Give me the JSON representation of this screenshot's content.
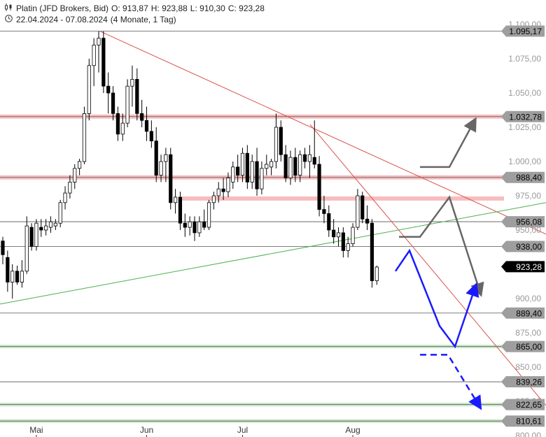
{
  "header": {
    "chart_icon": "candlestick-chart-icon",
    "instrument": "Platin (JFD Brokers, Bid)",
    "open": "O: 913,87",
    "high": "H: 923,88",
    "low": "L: 910,30",
    "close": "C: 923,28",
    "clock_icon": "clock-icon",
    "date_range": "22.04.2024 - 07.08.2024",
    "duration": "(4 Monate, 1 Tag)"
  },
  "chart_data": {
    "type": "candlestick",
    "instrument": "Platin (JFD Brokers, Bid)",
    "ylim": [
      794,
      1103
    ],
    "y_ticks": [
      1100,
      1075,
      1050,
      1025,
      1000,
      975,
      950,
      925,
      900,
      875,
      850,
      825,
      800
    ],
    "y_tick_labels": [
      "1.100,00",
      "1.075,00",
      "1.050,00",
      "1.025,00",
      "1.000,00",
      "975,00",
      "950,00",
      "925,00",
      "900,00",
      "875,00",
      "850,00",
      "825,00",
      "800,00"
    ],
    "x_labels": [
      "Mai",
      "Jun",
      "Jul",
      "Aug"
    ],
    "x_label_dates": [
      "2024-05-01",
      "2024-06-03",
      "2024-07-01",
      "2024-08-01"
    ],
    "colors": {
      "up": "#ffffff",
      "down": "#000000",
      "resistance": "#f4a7a7",
      "support": "#b8e0b8",
      "trend_red": "#d9534f",
      "trend_green": "#4caf50",
      "scenario_gray": "#666666",
      "scenario_blue": "#1a1aff"
    },
    "candles": [
      {
        "d": "2024-04-22",
        "o": 942,
        "h": 945,
        "l": 925,
        "c": 932
      },
      {
        "d": "2024-04-23",
        "o": 930,
        "h": 935,
        "l": 905,
        "c": 912
      },
      {
        "d": "2024-04-24",
        "o": 912,
        "h": 925,
        "l": 900,
        "c": 920
      },
      {
        "d": "2024-04-25",
        "o": 920,
        "h": 924,
        "l": 910,
        "c": 912
      },
      {
        "d": "2024-04-26",
        "o": 912,
        "h": 928,
        "l": 908,
        "c": 920
      },
      {
        "d": "2024-04-29",
        "o": 920,
        "h": 960,
        "l": 918,
        "c": 953
      },
      {
        "d": "2024-04-30",
        "o": 952,
        "h": 955,
        "l": 935,
        "c": 938
      },
      {
        "d": "2024-05-01",
        "o": 938,
        "h": 958,
        "l": 935,
        "c": 955
      },
      {
        "d": "2024-05-02",
        "o": 952,
        "h": 958,
        "l": 945,
        "c": 950
      },
      {
        "d": "2024-05-03",
        "o": 950,
        "h": 958,
        "l": 946,
        "c": 953
      },
      {
        "d": "2024-05-06",
        "o": 952,
        "h": 960,
        "l": 948,
        "c": 956
      },
      {
        "d": "2024-05-07",
        "o": 953,
        "h": 958,
        "l": 950,
        "c": 955
      },
      {
        "d": "2024-05-08",
        "o": 955,
        "h": 972,
        "l": 952,
        "c": 970
      },
      {
        "d": "2024-05-09",
        "o": 970,
        "h": 982,
        "l": 965,
        "c": 977
      },
      {
        "d": "2024-05-10",
        "o": 977,
        "h": 990,
        "l": 973,
        "c": 985
      },
      {
        "d": "2024-05-13",
        "o": 985,
        "h": 998,
        "l": 980,
        "c": 995
      },
      {
        "d": "2024-05-14",
        "o": 995,
        "h": 1002,
        "l": 990,
        "c": 1000
      },
      {
        "d": "2024-05-15",
        "o": 1000,
        "h": 1040,
        "l": 998,
        "c": 1035
      },
      {
        "d": "2024-05-16",
        "o": 1035,
        "h": 1075,
        "l": 1030,
        "c": 1070
      },
      {
        "d": "2024-05-17",
        "o": 1070,
        "h": 1090,
        "l": 1055,
        "c": 1085
      },
      {
        "d": "2024-05-20",
        "o": 1085,
        "h": 1095,
        "l": 1065,
        "c": 1090
      },
      {
        "d": "2024-05-21",
        "o": 1090,
        "h": 1095,
        "l": 1050,
        "c": 1055
      },
      {
        "d": "2024-05-22",
        "o": 1055,
        "h": 1065,
        "l": 1035,
        "c": 1050
      },
      {
        "d": "2024-05-23",
        "o": 1050,
        "h": 1055,
        "l": 1030,
        "c": 1035
      },
      {
        "d": "2024-05-24",
        "o": 1035,
        "h": 1040,
        "l": 1015,
        "c": 1020
      },
      {
        "d": "2024-05-27",
        "o": 1020,
        "h": 1035,
        "l": 1015,
        "c": 1028
      },
      {
        "d": "2024-05-28",
        "o": 1028,
        "h": 1060,
        "l": 1025,
        "c": 1055
      },
      {
        "d": "2024-05-29",
        "o": 1055,
        "h": 1070,
        "l": 1040,
        "c": 1060
      },
      {
        "d": "2024-05-30",
        "o": 1060,
        "h": 1068,
        "l": 1030,
        "c": 1035
      },
      {
        "d": "2024-05-31",
        "o": 1035,
        "h": 1045,
        "l": 1025,
        "c": 1030
      },
      {
        "d": "2024-06-03",
        "o": 1030,
        "h": 1040,
        "l": 1015,
        "c": 1022
      },
      {
        "d": "2024-06-04",
        "o": 1022,
        "h": 1030,
        "l": 1010,
        "c": 1015
      },
      {
        "d": "2024-06-05",
        "o": 1015,
        "h": 1025,
        "l": 985,
        "c": 990
      },
      {
        "d": "2024-06-06",
        "o": 990,
        "h": 1005,
        "l": 985,
        "c": 1000
      },
      {
        "d": "2024-06-07",
        "o": 1000,
        "h": 1010,
        "l": 985,
        "c": 1005
      },
      {
        "d": "2024-06-10",
        "o": 1005,
        "h": 1010,
        "l": 965,
        "c": 970
      },
      {
        "d": "2024-06-11",
        "o": 970,
        "h": 980,
        "l": 962,
        "c": 974
      },
      {
        "d": "2024-06-12",
        "o": 974,
        "h": 978,
        "l": 950,
        "c": 955
      },
      {
        "d": "2024-06-13",
        "o": 955,
        "h": 962,
        "l": 945,
        "c": 952
      },
      {
        "d": "2024-06-14",
        "o": 952,
        "h": 960,
        "l": 946,
        "c": 956
      },
      {
        "d": "2024-06-17",
        "o": 956,
        "h": 960,
        "l": 942,
        "c": 948
      },
      {
        "d": "2024-06-18",
        "o": 948,
        "h": 960,
        "l": 945,
        "c": 956
      },
      {
        "d": "2024-06-19",
        "o": 956,
        "h": 965,
        "l": 950,
        "c": 952
      },
      {
        "d": "2024-06-20",
        "o": 952,
        "h": 972,
        "l": 950,
        "c": 970
      },
      {
        "d": "2024-06-21",
        "o": 970,
        "h": 978,
        "l": 965,
        "c": 975
      },
      {
        "d": "2024-06-24",
        "o": 975,
        "h": 985,
        "l": 970,
        "c": 980
      },
      {
        "d": "2024-06-25",
        "o": 980,
        "h": 988,
        "l": 972,
        "c": 978
      },
      {
        "d": "2024-06-26",
        "o": 978,
        "h": 992,
        "l": 974,
        "c": 988
      },
      {
        "d": "2024-06-27",
        "o": 985,
        "h": 1000,
        "l": 980,
        "c": 996
      },
      {
        "d": "2024-06-28",
        "o": 996,
        "h": 1005,
        "l": 985,
        "c": 990
      },
      {
        "d": "2024-07-01",
        "o": 990,
        "h": 1010,
        "l": 985,
        "c": 1006
      },
      {
        "d": "2024-07-02",
        "o": 1006,
        "h": 1012,
        "l": 980,
        "c": 985
      },
      {
        "d": "2024-07-03",
        "o": 985,
        "h": 1005,
        "l": 980,
        "c": 1000
      },
      {
        "d": "2024-07-04",
        "o": 1000,
        "h": 1010,
        "l": 975,
        "c": 980
      },
      {
        "d": "2024-07-05",
        "o": 980,
        "h": 1000,
        "l": 976,
        "c": 995
      },
      {
        "d": "2024-07-08",
        "o": 995,
        "h": 1005,
        "l": 990,
        "c": 998
      },
      {
        "d": "2024-07-09",
        "o": 996,
        "h": 1002,
        "l": 990,
        "c": 1000
      },
      {
        "d": "2024-07-10",
        "o": 1000,
        "h": 1035,
        "l": 995,
        "c": 1025
      },
      {
        "d": "2024-07-11",
        "o": 1025,
        "h": 1030,
        "l": 1000,
        "c": 1005
      },
      {
        "d": "2024-07-12",
        "o": 1005,
        "h": 1012,
        "l": 985,
        "c": 988
      },
      {
        "d": "2024-07-15",
        "o": 988,
        "h": 1008,
        "l": 983,
        "c": 1003
      },
      {
        "d": "2024-07-16",
        "o": 1003,
        "h": 1010,
        "l": 985,
        "c": 990
      },
      {
        "d": "2024-07-17",
        "o": 990,
        "h": 1008,
        "l": 985,
        "c": 1005
      },
      {
        "d": "2024-07-18",
        "o": 1005,
        "h": 1010,
        "l": 995,
        "c": 1000
      },
      {
        "d": "2024-07-19",
        "o": 1000,
        "h": 1012,
        "l": 988,
        "c": 1005
      },
      {
        "d": "2024-07-22",
        "o": 1003,
        "h": 1030,
        "l": 995,
        "c": 998
      },
      {
        "d": "2024-07-23",
        "o": 998,
        "h": 1004,
        "l": 960,
        "c": 965
      },
      {
        "d": "2024-07-24",
        "o": 965,
        "h": 975,
        "l": 955,
        "c": 962
      },
      {
        "d": "2024-07-25",
        "o": 962,
        "h": 968,
        "l": 945,
        "c": 950
      },
      {
        "d": "2024-07-26",
        "o": 950,
        "h": 958,
        "l": 940,
        "c": 945
      },
      {
        "d": "2024-07-29",
        "o": 945,
        "h": 952,
        "l": 938,
        "c": 948
      },
      {
        "d": "2024-07-30",
        "o": 948,
        "h": 952,
        "l": 930,
        "c": 935
      },
      {
        "d": "2024-07-31",
        "o": 935,
        "h": 945,
        "l": 930,
        "c": 940
      },
      {
        "d": "2024-08-01",
        "o": 940,
        "h": 955,
        "l": 938,
        "c": 952
      },
      {
        "d": "2024-08-02",
        "o": 952,
        "h": 980,
        "l": 950,
        "c": 975
      },
      {
        "d": "2024-08-05",
        "o": 975,
        "h": 978,
        "l": 955,
        "c": 958
      },
      {
        "d": "2024-08-05b",
        "o": 958,
        "h": 968,
        "l": 950,
        "c": 955
      },
      {
        "d": "2024-08-06",
        "o": 955,
        "h": 958,
        "l": 908,
        "c": 913
      },
      {
        "d": "2024-08-07",
        "o": 913,
        "h": 924,
        "l": 910,
        "c": 923
      }
    ],
    "horizontal_levels": [
      {
        "value": 1095.17,
        "label": "1.095,17",
        "style": "gray"
      },
      {
        "value": 1032.78,
        "label": "1.032,78",
        "style": "resistance"
      },
      {
        "value": 988.4,
        "label": "988,40",
        "style": "resistance"
      },
      {
        "value": 973,
        "label": "",
        "style": "resistance-partial"
      },
      {
        "value": 956.08,
        "label": "956,08",
        "style": "gray"
      },
      {
        "value": 938.0,
        "label": "938,00",
        "style": "gray"
      },
      {
        "value": 889.4,
        "label": "889,40",
        "style": "gray"
      },
      {
        "value": 865.0,
        "label": "865,00",
        "style": "support"
      },
      {
        "value": 839.26,
        "label": "839,26",
        "style": "gray"
      },
      {
        "value": 822.65,
        "label": "822,65",
        "style": "support"
      },
      {
        "value": 810.61,
        "label": "810,61",
        "style": "support"
      }
    ],
    "current_price": {
      "value": 923.28,
      "label": "923,28"
    }
  }
}
